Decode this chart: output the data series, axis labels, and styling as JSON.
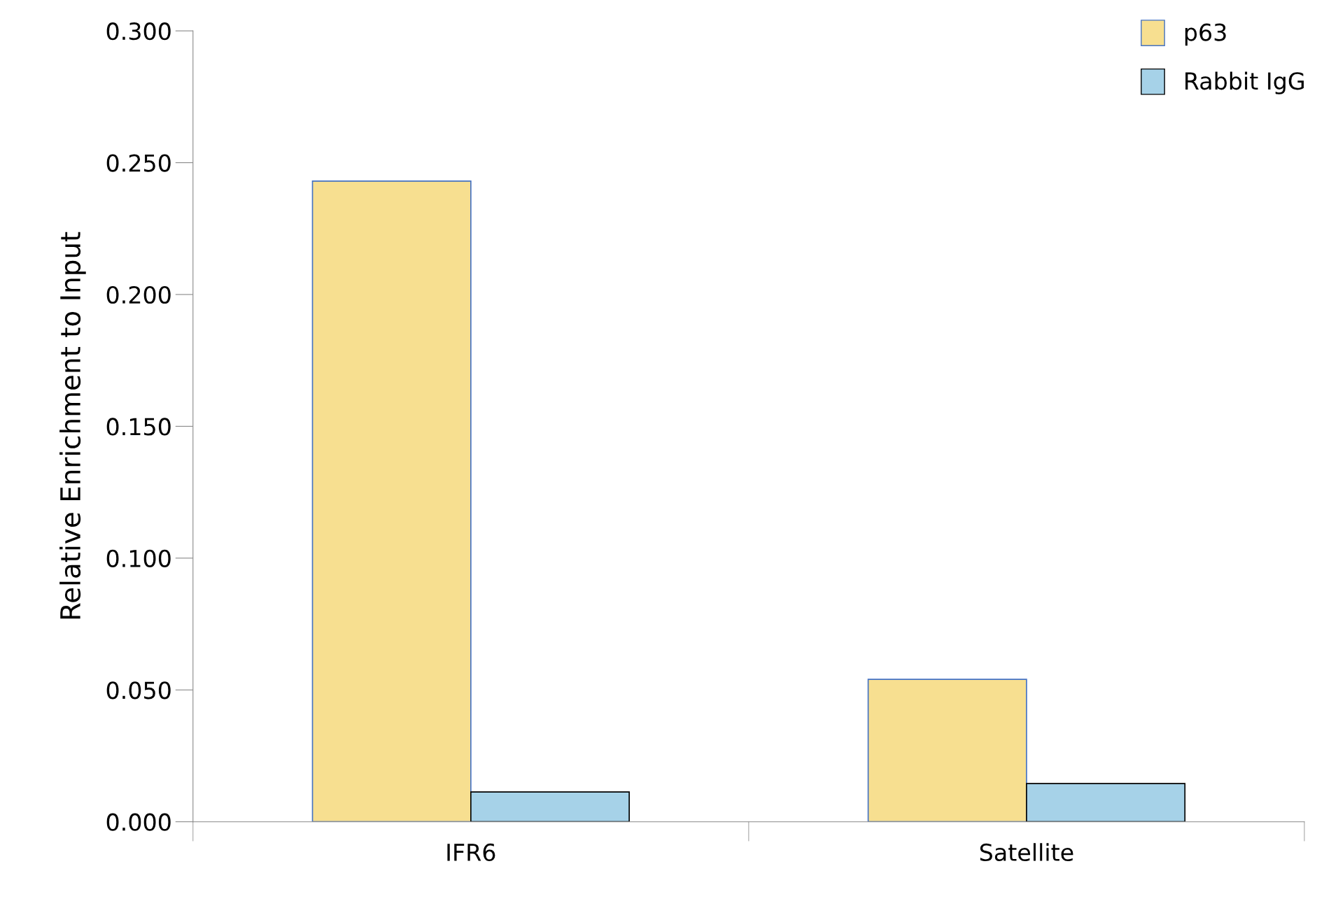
{
  "chart_data": {
    "type": "bar",
    "ylabel": "Relative Enrichment to Input",
    "categories": [
      "IFR6",
      "Satellite"
    ],
    "series": [
      {
        "name": "p63",
        "color": "#f7df90",
        "values": [
          0.243,
          0.054
        ]
      },
      {
        "name": "Rabbit IgG",
        "color": "#a6d2e8",
        "values": [
          0.0113,
          0.0145
        ]
      }
    ],
    "ylim": [
      0,
      0.3
    ],
    "yticks": [
      {
        "value": 0,
        "label": "0.000"
      },
      {
        "value": 0.05,
        "label": "0.050"
      },
      {
        "value": 0.1,
        "label": "0.100"
      },
      {
        "value": 0.15,
        "label": "0.150"
      },
      {
        "value": 0.2,
        "label": "0.200"
      },
      {
        "value": 0.25,
        "label": "0.250"
      },
      {
        "value": 0.3,
        "label": "0.300"
      }
    ],
    "grid": false,
    "legend": "top right"
  }
}
